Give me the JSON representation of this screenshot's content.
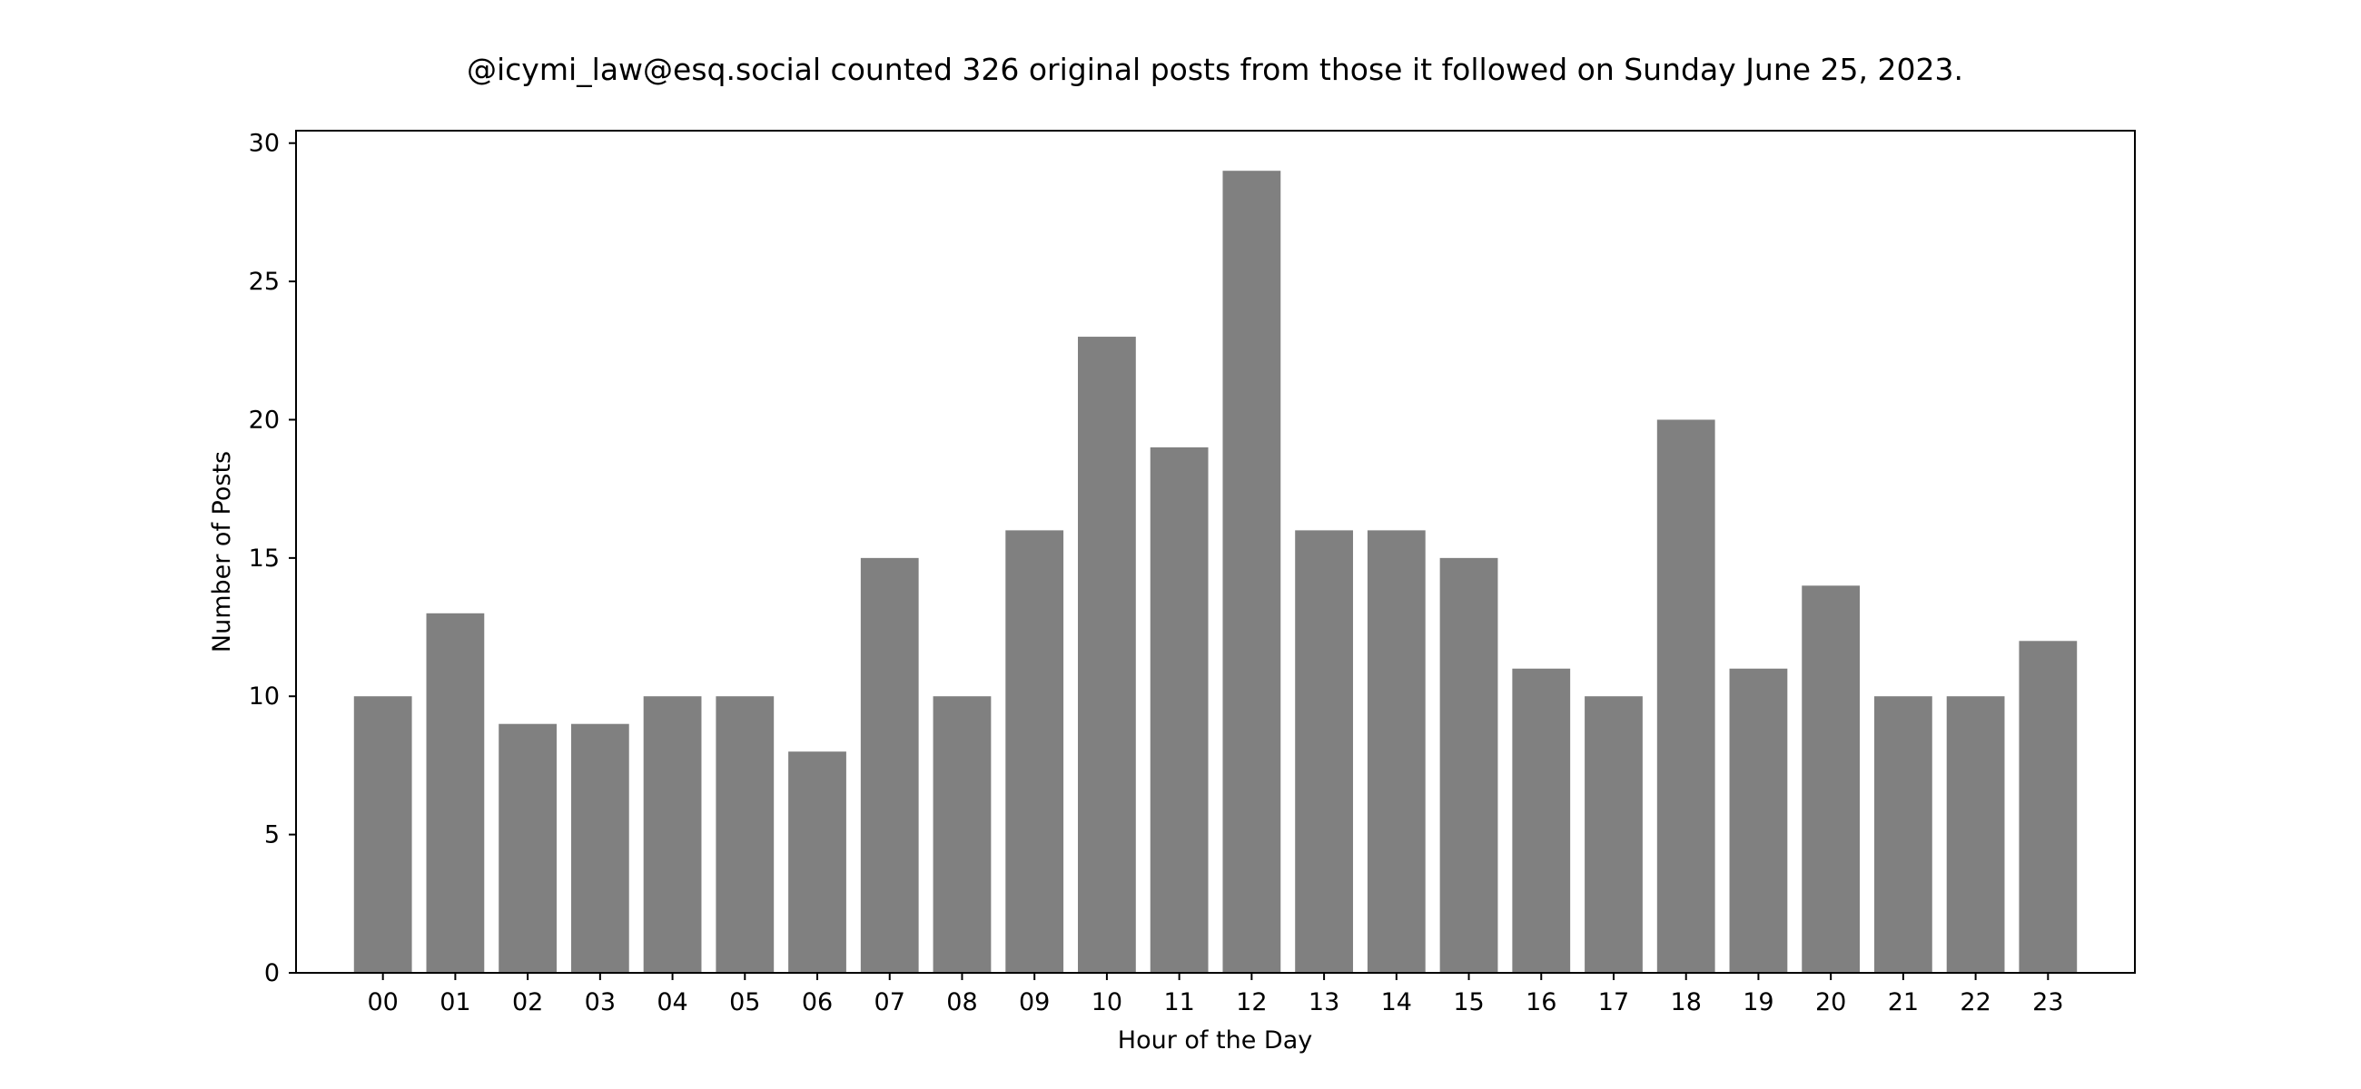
{
  "chart_data": {
    "type": "bar",
    "title": "@icymi_law@esq.social counted 326 original posts from those it followed on Sunday June 25, 2023.",
    "xlabel": "Hour of the Day",
    "ylabel": "Number of Posts",
    "categories": [
      "00",
      "01",
      "02",
      "03",
      "04",
      "05",
      "06",
      "07",
      "08",
      "09",
      "10",
      "11",
      "12",
      "13",
      "14",
      "15",
      "16",
      "17",
      "18",
      "19",
      "20",
      "21",
      "22",
      "23"
    ],
    "values": [
      10,
      13,
      9,
      9,
      10,
      10,
      8,
      15,
      10,
      16,
      23,
      19,
      29,
      16,
      16,
      15,
      11,
      10,
      20,
      11,
      14,
      10,
      10,
      12
    ],
    "ylim": [
      0,
      30.45
    ],
    "yticks": [
      0,
      5,
      10,
      15,
      20,
      25,
      30
    ],
    "bar_color": "#808080",
    "grid": false,
    "legend": "none"
  }
}
